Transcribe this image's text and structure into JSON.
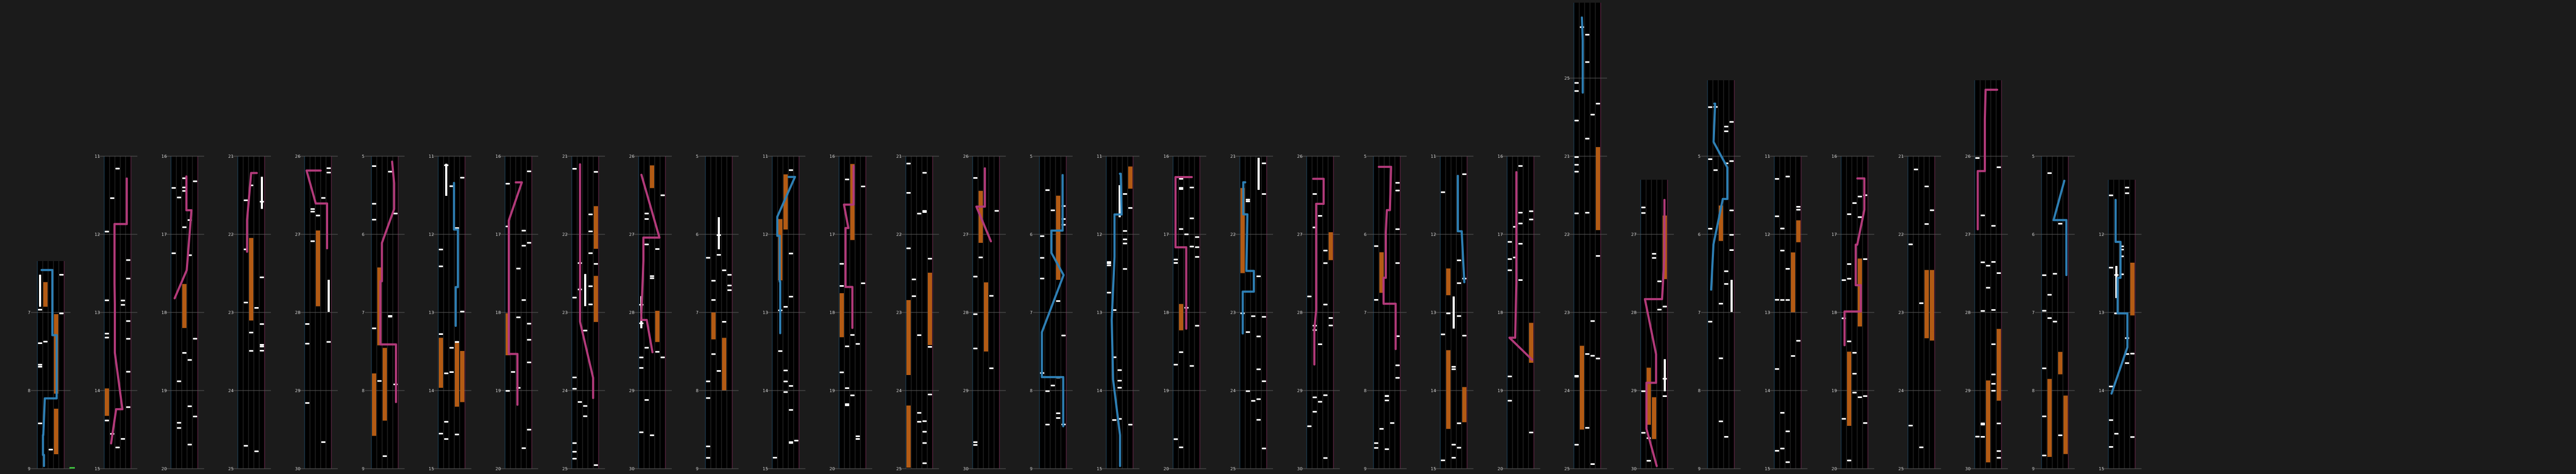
{
  "colors": {
    "background": "#1b1b1b",
    "lane": "#000000",
    "grid": "#303030",
    "blue": "#2e7fb4",
    "pink": "#b23a7a",
    "orange": "#b35b14",
    "white": "#ffffff",
    "green": "#3fbf3f"
  },
  "chart_data": {
    "type": "chart-columns",
    "measure_label_sets": [
      [
        "9",
        "8",
        "7",
        "6",
        "5"
      ],
      [
        "15",
        "14",
        "13",
        "12",
        "11"
      ],
      [
        "20",
        "19",
        "18",
        "17",
        "16"
      ],
      [
        "25",
        "24",
        "23",
        "22",
        "21"
      ],
      [
        "30",
        "29",
        "28",
        "27",
        "26"
      ]
    ],
    "column_count": 32
  }
}
